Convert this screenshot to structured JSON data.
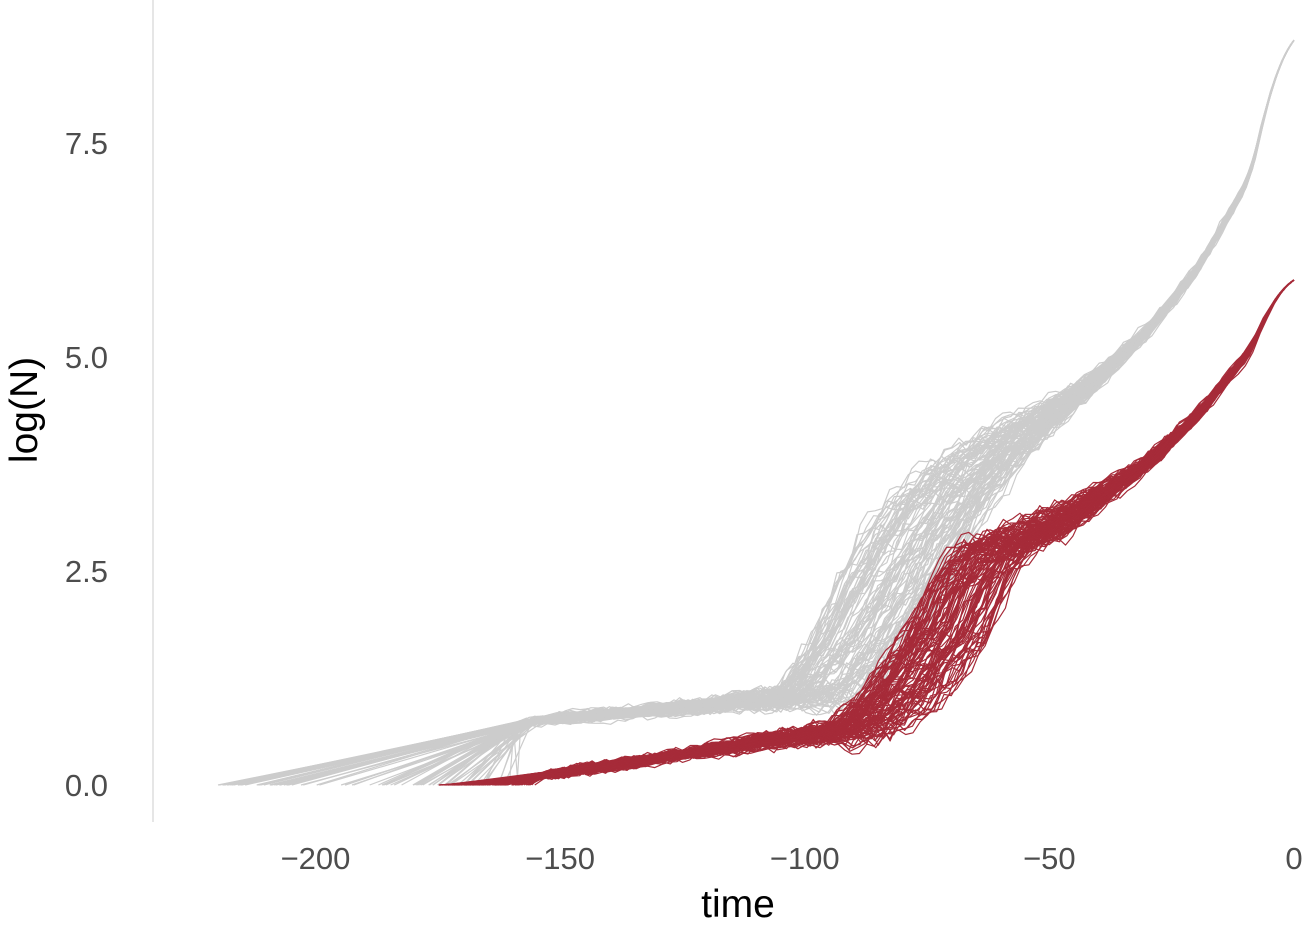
{
  "chart_data": {
    "type": "line",
    "xlabel": "time",
    "ylabel": "log(N)",
    "xlim": [
      -225,
      0
    ],
    "ylim": [
      -0.4,
      8.8
    ],
    "x_ticks": [
      -200,
      -150,
      -100,
      -50,
      0
    ],
    "y_ticks": [
      0.0,
      2.5,
      5.0,
      7.5
    ],
    "x_tick_labels": [
      "−200",
      "−150",
      "−100",
      "−50",
      "0"
    ],
    "y_tick_labels": [
      "0.0",
      "2.5",
      "5.0",
      "7.5"
    ],
    "grid": false,
    "legend": "none",
    "series": [
      {
        "color": "#cccccc",
        "trajectory_count": 100,
        "representative": {
          "x": [
            -220,
            -160,
            -155,
            -100,
            -90,
            -80,
            -70,
            -60,
            -50,
            -40,
            -30,
            -20,
            -10,
            0
          ],
          "y": [
            0.0,
            0.69,
            0.75,
            1.05,
            1.6,
            2.5,
            3.3,
            3.85,
            4.3,
            4.75,
            5.3,
            6.0,
            7.0,
            8.7
          ]
        }
      },
      {
        "color": "#a62b39",
        "trajectory_count": 100,
        "representative": {
          "x": [
            -175,
            -155,
            -110,
            -90,
            -80,
            -70,
            -65,
            -60,
            -50,
            -40,
            -30,
            -20,
            -10,
            0
          ],
          "y": [
            0.0,
            0.1,
            0.5,
            0.65,
            1.1,
            1.8,
            2.4,
            2.75,
            3.0,
            3.35,
            3.75,
            4.3,
            5.0,
            5.9
          ]
        }
      }
    ]
  }
}
